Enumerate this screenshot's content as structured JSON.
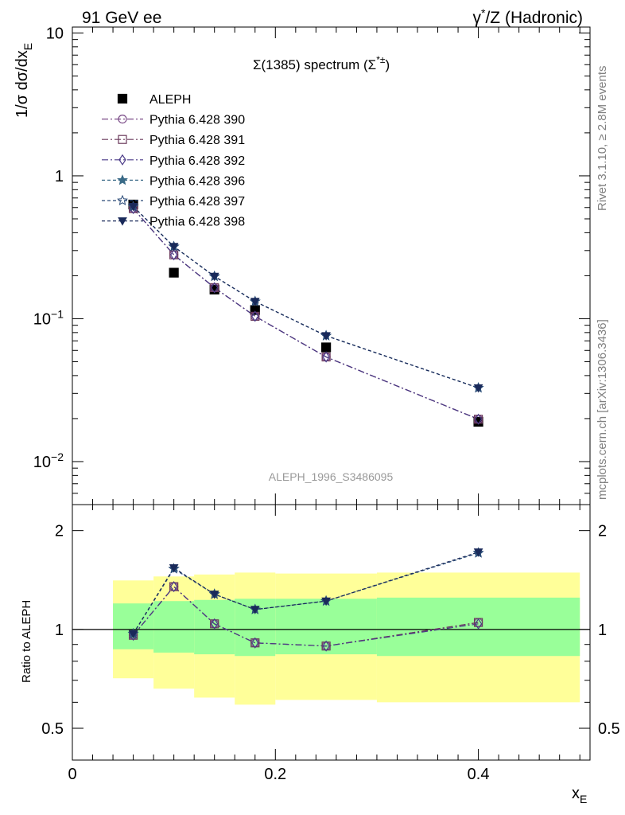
{
  "header": {
    "left": "91 GeV ee",
    "right_prefix": "γ",
    "right_sup": "*",
    "right_suffix": "/Z (Hadronic)"
  },
  "side_labels": {
    "rivet": "Rivet 3.1.10, ≥ 2.8M events",
    "mcplots": "mcplots.cern.ch [arXiv:1306.3436]"
  },
  "chart_data": [
    {
      "type": "scatter",
      "title_main": "Σ(1385) spectrum (Σ",
      "title_sup": "*±",
      "title_close": ")",
      "watermark": "ALEPH_1996_S3486095",
      "ylabel_main": "1/σ dσ/dx",
      "ylabel_sub": "E",
      "yscale": "log",
      "xlim": [
        0,
        0.51
      ],
      "ylim": [
        0.005,
        11
      ],
      "yticks": [
        {
          "value": 10,
          "base": "10",
          "exp": ""
        },
        {
          "value": 1,
          "base": "1",
          "exp": ""
        },
        {
          "value": 0.1,
          "base": "10",
          "exp": "−1"
        },
        {
          "value": 0.01,
          "base": "10",
          "exp": "−2"
        }
      ],
      "legend_position": "top-left",
      "series": [
        {
          "name": "ALEPH",
          "marker": "square-filled",
          "color": "#000000",
          "line": false,
          "x": [
            0.06,
            0.1,
            0.14,
            0.18,
            0.25,
            0.4
          ],
          "y": [
            0.63,
            0.21,
            0.16,
            0.115,
            0.063,
            0.019
          ]
        },
        {
          "name": "Pythia 6.428 390",
          "marker": "circle-open",
          "color": "#7a4a87",
          "dash": "8,3,2,3",
          "x": [
            0.06,
            0.1,
            0.14,
            0.18,
            0.25,
            0.4
          ],
          "y": [
            0.59,
            0.28,
            0.165,
            0.104,
            0.054,
            0.0198
          ]
        },
        {
          "name": "Pythia 6.428 391",
          "marker": "square-open",
          "color": "#6b3a5c",
          "dash": "8,3,2,3",
          "x": [
            0.06,
            0.1,
            0.14,
            0.18,
            0.25,
            0.4
          ],
          "y": [
            0.59,
            0.28,
            0.165,
            0.104,
            0.054,
            0.0198
          ]
        },
        {
          "name": "Pythia 6.428 392",
          "marker": "diamond-open",
          "color": "#4a3a87",
          "dash": "8,3,2,3",
          "x": [
            0.06,
            0.1,
            0.14,
            0.18,
            0.25,
            0.4
          ],
          "y": [
            0.59,
            0.28,
            0.165,
            0.104,
            0.054,
            0.0198
          ]
        },
        {
          "name": "Pythia 6.428 396",
          "marker": "star-filled",
          "color": "#3a6a87",
          "dash": "4,3",
          "x": [
            0.06,
            0.1,
            0.14,
            0.18,
            0.25,
            0.4
          ],
          "y": [
            0.61,
            0.32,
            0.198,
            0.132,
            0.076,
            0.0328
          ]
        },
        {
          "name": "Pythia 6.428 397",
          "marker": "star-open",
          "color": "#2a4a77",
          "dash": "4,3",
          "x": [
            0.06,
            0.1,
            0.14,
            0.18,
            0.25,
            0.4
          ],
          "y": [
            0.61,
            0.32,
            0.198,
            0.132,
            0.076,
            0.0328
          ]
        },
        {
          "name": "Pythia 6.428 398",
          "marker": "triangle-down-filled",
          "color": "#1a2a5a",
          "dash": "4,3",
          "x": [
            0.06,
            0.1,
            0.14,
            0.18,
            0.25,
            0.4
          ],
          "y": [
            0.61,
            0.32,
            0.198,
            0.132,
            0.076,
            0.0328
          ]
        }
      ]
    },
    {
      "type": "scatter",
      "ylabel": "Ratio to ALEPH",
      "xlabel_main": "x",
      "xlabel_sub": "E",
      "yscale": "log",
      "xlim": [
        0,
        0.51
      ],
      "ylim": [
        0.4,
        2.4
      ],
      "xticks": [
        "0",
        "0.2",
        "0.4"
      ],
      "xtick_values": [
        0,
        0.2,
        0.4
      ],
      "yticks": [
        "0.5",
        "1",
        "2"
      ],
      "ytick_values": [
        0.5,
        1,
        2
      ],
      "reference_line": 1,
      "bands": [
        {
          "x0": 0.04,
          "x1": 0.08,
          "outer": [
            0.71,
            1.41
          ],
          "inner": [
            0.87,
            1.2
          ]
        },
        {
          "x0": 0.08,
          "x1": 0.12,
          "outer": [
            0.66,
            1.45
          ],
          "inner": [
            0.85,
            1.22
          ]
        },
        {
          "x0": 0.12,
          "x1": 0.16,
          "outer": [
            0.62,
            1.47
          ],
          "inner": [
            0.84,
            1.23
          ]
        },
        {
          "x0": 0.16,
          "x1": 0.2,
          "outer": [
            0.59,
            1.49
          ],
          "inner": [
            0.83,
            1.24
          ]
        },
        {
          "x0": 0.2,
          "x1": 0.3,
          "outer": [
            0.61,
            1.48
          ],
          "inner": [
            0.84,
            1.24
          ]
        },
        {
          "x0": 0.3,
          "x1": 0.5,
          "outer": [
            0.6,
            1.49
          ],
          "inner": [
            0.83,
            1.25
          ]
        }
      ],
      "series": [
        {
          "name": "Pythia 6.428 390",
          "marker": "circle-open",
          "color": "#7a4a87",
          "dash": "8,3,2,3",
          "x": [
            0.06,
            0.1,
            0.14,
            0.18,
            0.25,
            0.4
          ],
          "y": [
            0.96,
            1.35,
            1.04,
            0.91,
            0.89,
            1.05
          ]
        },
        {
          "name": "Pythia 6.428 391",
          "marker": "square-open",
          "color": "#6b3a5c",
          "dash": "8,3,2,3",
          "x": [
            0.06,
            0.1,
            0.14,
            0.18,
            0.25,
            0.4
          ],
          "y": [
            0.96,
            1.35,
            1.04,
            0.91,
            0.89,
            1.05
          ]
        },
        {
          "name": "Pythia 6.428 392",
          "marker": "diamond-open",
          "color": "#4a3a87",
          "dash": "8,3,2,3",
          "x": [
            0.06,
            0.1,
            0.14,
            0.18,
            0.25,
            0.4
          ],
          "y": [
            0.96,
            1.35,
            1.04,
            0.91,
            0.89,
            1.04
          ]
        },
        {
          "name": "Pythia 6.428 396",
          "marker": "star-filled",
          "color": "#3a6a87",
          "dash": "4,3",
          "x": [
            0.06,
            0.1,
            0.14,
            0.18,
            0.25,
            0.4
          ],
          "y": [
            0.97,
            1.53,
            1.28,
            1.15,
            1.22,
            1.71
          ]
        },
        {
          "name": "Pythia 6.428 397",
          "marker": "star-open",
          "color": "#2a4a77",
          "dash": "4,3",
          "x": [
            0.06,
            0.1,
            0.14,
            0.18,
            0.25,
            0.4
          ],
          "y": [
            0.97,
            1.53,
            1.28,
            1.15,
            1.22,
            1.71
          ]
        },
        {
          "name": "Pythia 6.428 398",
          "marker": "triangle-down-filled",
          "color": "#1a2a5a",
          "dash": "4,3",
          "x": [
            0.06,
            0.1,
            0.14,
            0.18,
            0.25,
            0.4
          ],
          "y": [
            0.97,
            1.54,
            1.28,
            1.15,
            1.22,
            1.72
          ]
        }
      ]
    }
  ],
  "colors": {
    "band_outer": "#ffff99",
    "band_inner": "#99ff99"
  }
}
